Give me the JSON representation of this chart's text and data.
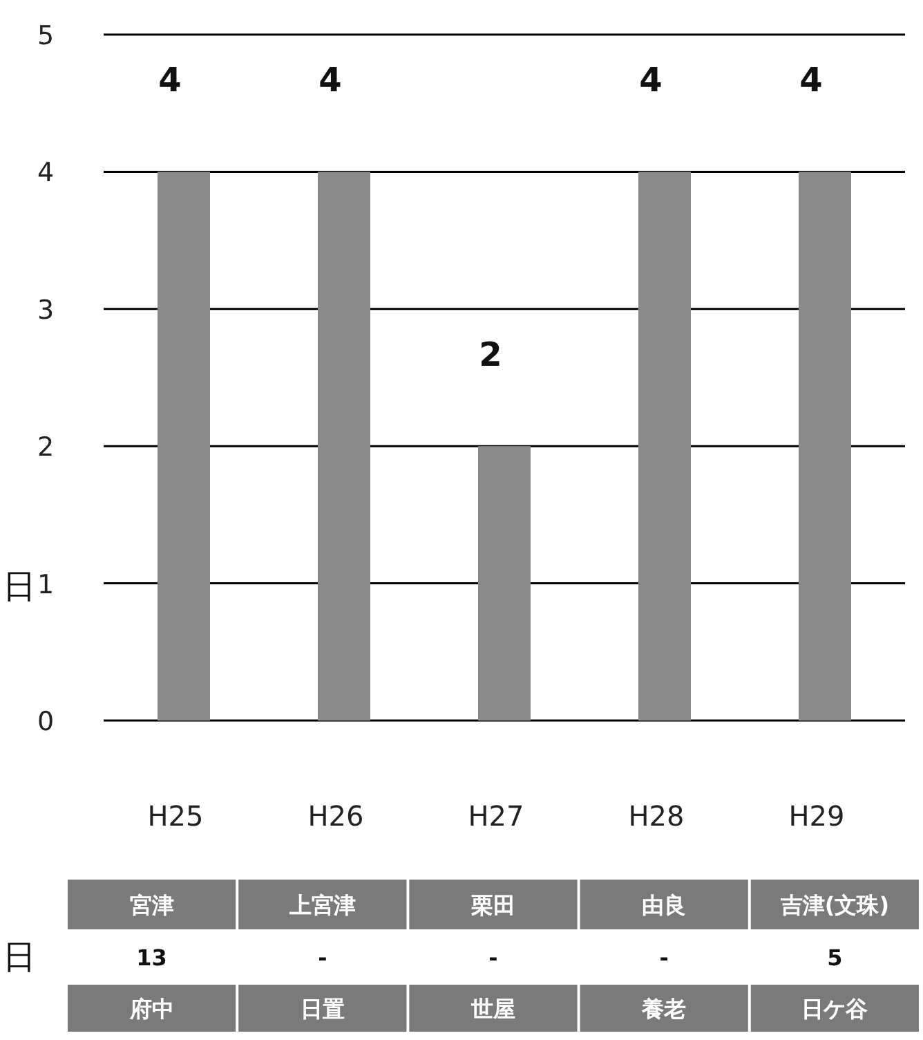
{
  "chart_data": {
    "type": "bar",
    "ylabel": "日",
    "categories": [
      "H25",
      "H26",
      "H27",
      "H28",
      "H29"
    ],
    "values": [
      4,
      4,
      2,
      4,
      4
    ],
    "color": "#8a8a8a",
    "ylim": [
      0,
      5
    ],
    "yticks": [
      0,
      1,
      2,
      3,
      4,
      5
    ],
    "grid": "y",
    "data_labels": true,
    "annotations": [
      "宮津",
      "上宮津",
      "栗田",
      "由良",
      "吉津(文珠)",
      "13",
      "-",
      "-",
      "-",
      "5",
      "府中",
      "日置",
      "世屋",
      "養老",
      "日ケ谷",
      "日"
    ]
  }
}
